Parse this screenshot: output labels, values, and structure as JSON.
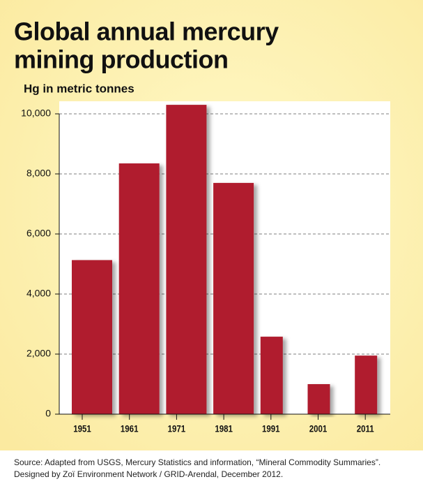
{
  "chart_data": {
    "type": "bar",
    "title": [
      "Global annual mercury",
      "mining production"
    ],
    "subtitle": "Hg in metric tonnes",
    "categories": [
      "1951",
      "1961",
      "1971",
      "1981",
      "1991",
      "2001",
      "2011"
    ],
    "values": [
      5130,
      8350,
      10300,
      7700,
      2580,
      1000,
      1950
    ],
    "color": "#b01e2d",
    "ylim": [
      0,
      10400
    ],
    "yticks": [
      0,
      {
        "value": 2000,
        "label": "2,000"
      },
      {
        "value": 4000,
        "label": "4,000"
      },
      {
        "value": 6000,
        "label": "6,000"
      },
      {
        "value": 8000,
        "label": "8,000"
      },
      {
        "value": 10000,
        "label": "10,000"
      }
    ],
    "grid": true,
    "source": [
      "Source: Adapted from USGS, Mercury Statistics and information, “Mineral Commodity Summaries”.",
      "Designed by Zoï Environment Network / GRID-Arendal, December 2012."
    ]
  }
}
